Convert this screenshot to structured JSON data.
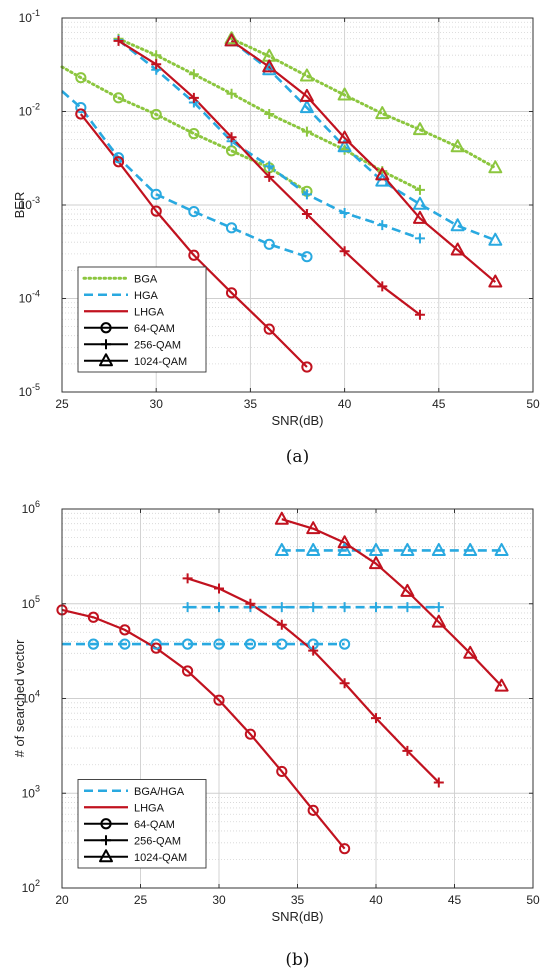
{
  "chart_data": [
    {
      "type": "line",
      "caption": "(a)",
      "xlabel": "SNR(dB)",
      "ylabel": "BER",
      "xlim": [
        25,
        50
      ],
      "ylim": [
        1e-05,
        0.1
      ],
      "yscale": "log",
      "xticks": [
        25,
        30,
        35,
        40,
        45,
        50
      ],
      "yticks": [
        {
          "v": 1e-05,
          "b": "10",
          "e": "-5"
        },
        {
          "v": 0.0001,
          "b": "10",
          "e": "-4"
        },
        {
          "v": 0.001,
          "b": "10",
          "e": "-3"
        },
        {
          "v": 0.01,
          "b": "10",
          "e": "-2"
        },
        {
          "v": 0.1,
          "b": "10",
          "e": "-1"
        }
      ],
      "grid": true,
      "legend_position": "bottom-left",
      "legend": [
        {
          "label": "BGA",
          "kind": "line",
          "style": "bga"
        },
        {
          "label": "HGA",
          "kind": "line",
          "style": "hga"
        },
        {
          "label": "LHGA",
          "kind": "line",
          "style": "lhga"
        },
        {
          "label": "64-QAM",
          "kind": "marker",
          "marker": "circle"
        },
        {
          "label": "256-QAM",
          "kind": "marker",
          "marker": "plus"
        },
        {
          "label": "1024-QAM",
          "kind": "marker",
          "marker": "triangle"
        }
      ],
      "series": [
        {
          "style": "bga",
          "marker": "circle",
          "x": [
            25,
            26,
            28,
            30,
            32,
            34,
            36,
            38
          ],
          "y": [
            0.03,
            0.023,
            0.014,
            0.0093,
            0.0058,
            0.0038,
            0.0025,
            0.0014
          ],
          "marker_x": [
            26,
            28,
            30,
            32,
            34,
            36,
            38
          ]
        },
        {
          "style": "hga",
          "marker": "circle",
          "x": [
            25,
            26,
            28,
            30,
            32,
            34,
            36,
            38
          ],
          "y": [
            0.0165,
            0.011,
            0.0032,
            0.0013,
            0.00085,
            0.00057,
            0.00038,
            0.00028
          ],
          "marker_x": [
            26,
            28,
            30,
            32,
            34,
            36,
            38
          ]
        },
        {
          "style": "lhga",
          "marker": "circle",
          "x": [
            26,
            28,
            30,
            32,
            34,
            36,
            38
          ],
          "y": [
            0.0094,
            0.0029,
            0.00086,
            0.00029,
            0.000115,
            4.7e-05,
            1.85e-05
          ]
        },
        {
          "style": "bga",
          "marker": "plus",
          "x": [
            28,
            30,
            32,
            34,
            36,
            38,
            40,
            42,
            44
          ],
          "y": [
            0.06,
            0.04,
            0.025,
            0.0155,
            0.0094,
            0.0061,
            0.0039,
            0.0023,
            0.00145
          ]
        },
        {
          "style": "hga",
          "marker": "plus",
          "x": [
            28,
            30,
            32,
            34,
            36,
            38,
            40,
            42,
            44
          ],
          "y": [
            0.058,
            0.028,
            0.0125,
            0.0048,
            0.0026,
            0.0013,
            0.00082,
            0.00061,
            0.00044
          ]
        },
        {
          "style": "lhga",
          "marker": "plus",
          "x": [
            28,
            30,
            32,
            34,
            36,
            38,
            40,
            42,
            44
          ],
          "y": [
            0.057,
            0.032,
            0.014,
            0.0053,
            0.002,
            0.0008,
            0.00032,
            0.000135,
            6.7e-05
          ]
        },
        {
          "style": "bga",
          "marker": "triangle",
          "x": [
            34,
            36,
            38,
            40,
            42,
            44,
            46,
            48
          ],
          "y": [
            0.06,
            0.039,
            0.024,
            0.015,
            0.0095,
            0.0064,
            0.0042,
            0.0025
          ]
        },
        {
          "style": "hga",
          "marker": "triangle",
          "x": [
            34,
            36,
            38,
            40,
            42,
            44,
            46,
            48
          ],
          "y": [
            0.057,
            0.028,
            0.011,
            0.0042,
            0.0018,
            0.00102,
            0.0006,
            0.00042
          ]
        },
        {
          "style": "lhga",
          "marker": "triangle",
          "x": [
            34,
            36,
            38,
            40,
            42,
            44,
            46,
            48
          ],
          "y": [
            0.057,
            0.03,
            0.0145,
            0.0052,
            0.0021,
            0.00072,
            0.00033,
            0.00015
          ]
        }
      ]
    },
    {
      "type": "line",
      "caption": "(b)",
      "xlabel": "SNR(dB)",
      "ylabel": "# of searched vector",
      "xlim": [
        20,
        50
      ],
      "ylim": [
        100,
        1000000
      ],
      "yscale": "log",
      "xticks": [
        20,
        25,
        30,
        35,
        40,
        45,
        50
      ],
      "yticks": [
        {
          "v": 100,
          "b": "10",
          "e": "2"
        },
        {
          "v": 1000,
          "b": "10",
          "e": "3"
        },
        {
          "v": 10000,
          "b": "10",
          "e": "4"
        },
        {
          "v": 100000,
          "b": "10",
          "e": "5"
        },
        {
          "v": 1000000,
          "b": "10",
          "e": "6"
        }
      ],
      "grid": true,
      "legend_position": "bottom-left",
      "legend": [
        {
          "label": "BGA/HGA",
          "kind": "line",
          "style": "hga"
        },
        {
          "label": "LHGA",
          "kind": "line",
          "style": "lhga"
        },
        {
          "label": "64-QAM",
          "kind": "marker",
          "marker": "circle"
        },
        {
          "label": "256-QAM",
          "kind": "marker",
          "marker": "plus"
        },
        {
          "label": "1024-QAM",
          "kind": "marker",
          "marker": "triangle"
        }
      ],
      "series": [
        {
          "style": "hga",
          "marker": "circle",
          "x": [
            20,
            22,
            24,
            26,
            28,
            30,
            32,
            34,
            36,
            38
          ],
          "y": [
            37500,
            37500,
            37500,
            37500,
            37500,
            37500,
            37500,
            37500,
            37500,
            37500
          ],
          "marker_x": [
            22,
            24,
            26,
            28,
            30,
            32,
            34,
            36,
            38
          ]
        },
        {
          "style": "lhga",
          "marker": "circle",
          "x": [
            20,
            22,
            24,
            26,
            28,
            30,
            32,
            34,
            36,
            38
          ],
          "y": [
            86000,
            72000,
            53000,
            34000,
            19500,
            9600,
            4200,
            1700,
            660,
            260
          ]
        },
        {
          "style": "hga",
          "marker": "plus",
          "x": [
            28,
            30,
            32,
            34,
            36,
            38,
            40,
            42,
            44
          ],
          "y": [
            92000,
            92000,
            92000,
            92000,
            92000,
            92000,
            92000,
            92000,
            92000
          ]
        },
        {
          "style": "lhga",
          "marker": "plus",
          "x": [
            28,
            30,
            32,
            34,
            36,
            38,
            40,
            42,
            44
          ],
          "y": [
            185000,
            145000,
            100000,
            60000,
            32000,
            14500,
            6200,
            2800,
            1300
          ]
        },
        {
          "style": "hga",
          "marker": "triangle",
          "x": [
            34,
            36,
            38,
            40,
            42,
            44,
            46,
            48
          ],
          "y": [
            365000,
            365000,
            365000,
            365000,
            365000,
            365000,
            365000,
            365000
          ]
        },
        {
          "style": "lhga",
          "marker": "triangle",
          "x": [
            34,
            36,
            38,
            40,
            42,
            44,
            46,
            48
          ],
          "y": [
            780000,
            620000,
            440000,
            265000,
            135000,
            64000,
            30000,
            13500
          ]
        }
      ]
    }
  ],
  "styles": {
    "bga": {
      "color": "#8cc63f"
    },
    "hga": {
      "color": "#29a9e0"
    },
    "lhga": {
      "color": "#c1121f"
    }
  }
}
